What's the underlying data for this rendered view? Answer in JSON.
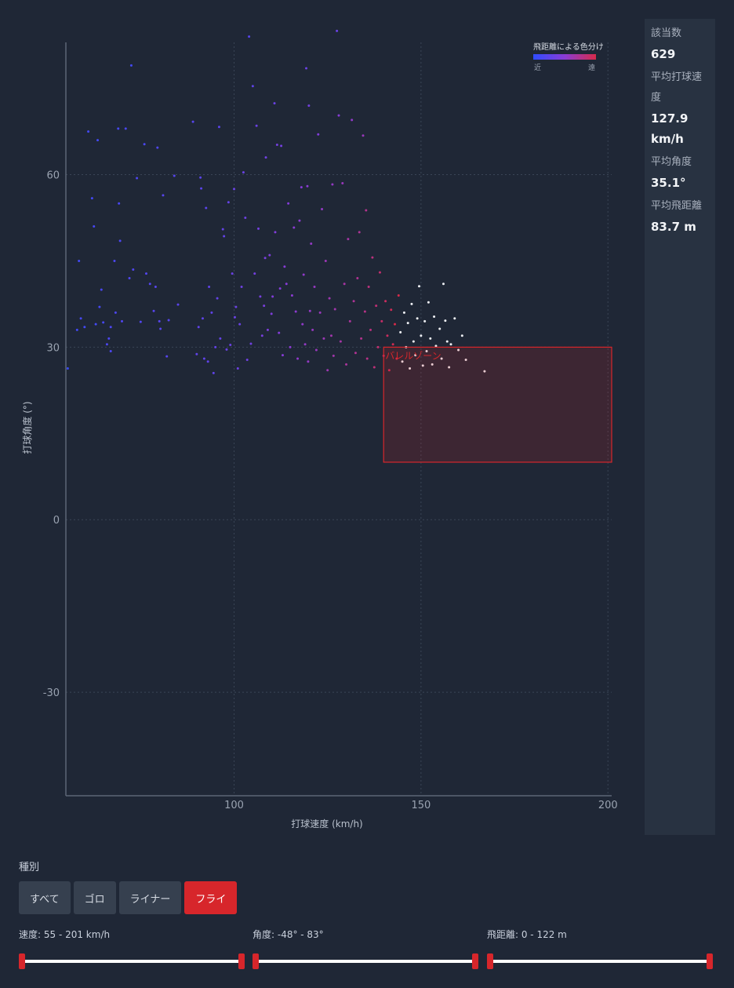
{
  "chart_data": {
    "type": "scatter",
    "xlabel": "打球速度 (km/h)",
    "ylabel": "打球角度 (°)",
    "xlim": [
      55,
      201
    ],
    "ylim": [
      -48,
      83
    ],
    "xticks": [
      100,
      150,
      200
    ],
    "yticks": [
      60,
      30,
      0,
      -30
    ],
    "grid": true,
    "legend": {
      "title": "飛距離による色分け",
      "near": "近",
      "far": "遠",
      "placement": "top-right",
      "colors": [
        "#2f4cff",
        "#8a3cd6",
        "#d72a4a"
      ]
    },
    "highlight_zone": {
      "label": "バレルゾーン",
      "x_range": [
        140,
        201
      ],
      "y_range": [
        10,
        30
      ],
      "color": "#d7262b"
    },
    "points": [
      [
        55.5,
        26.3,
        0.05
      ],
      [
        58,
        33,
        0.1
      ],
      [
        58.5,
        45,
        0.1
      ],
      [
        59,
        35,
        0.12
      ],
      [
        60,
        33.5,
        0.1
      ],
      [
        61,
        67.5,
        0.1
      ],
      [
        62,
        55.9,
        0.1
      ],
      [
        62.5,
        51,
        0.12
      ],
      [
        63,
        34,
        0.1
      ],
      [
        63.5,
        66,
        0.1
      ],
      [
        64,
        37,
        0.12
      ],
      [
        64.5,
        40,
        0.13
      ],
      [
        65,
        34.3,
        0.12
      ],
      [
        66,
        30.5,
        0.15
      ],
      [
        66.5,
        31.5,
        0.15
      ],
      [
        67,
        29.3,
        0.15
      ],
      [
        67,
        33.5,
        0.15
      ],
      [
        68,
        45,
        0.15
      ],
      [
        68.3,
        36,
        0.15
      ],
      [
        69,
        68,
        0.12
      ],
      [
        69.2,
        55,
        0.13
      ],
      [
        69.5,
        48.5,
        0.15
      ],
      [
        70,
        34.5,
        0.17
      ],
      [
        71,
        68,
        0.14
      ],
      [
        72,
        42,
        0.17
      ],
      [
        72.5,
        79,
        0.1
      ],
      [
        73,
        43.5,
        0.17
      ],
      [
        74,
        59.4,
        0.16
      ],
      [
        75,
        34.4,
        0.17
      ],
      [
        76,
        65.3,
        0.14
      ],
      [
        76.5,
        42.8,
        0.18
      ],
      [
        77.5,
        41,
        0.18
      ],
      [
        78.5,
        36.3,
        0.2
      ],
      [
        79,
        40.5,
        0.2
      ],
      [
        79.5,
        64.7,
        0.16
      ],
      [
        80,
        34.5,
        0.2
      ],
      [
        80.3,
        33.2,
        0.2
      ],
      [
        81,
        56.4,
        0.2
      ],
      [
        82,
        28.4,
        0.2
      ],
      [
        82.5,
        34.7,
        0.2
      ],
      [
        84,
        59.8,
        0.2
      ],
      [
        85,
        37.4,
        0.22
      ],
      [
        89,
        69.2,
        0.2
      ],
      [
        90,
        28.8,
        0.25
      ],
      [
        90.5,
        33.5,
        0.25
      ],
      [
        91,
        59.5,
        0.22
      ],
      [
        91.2,
        57.6,
        0.22
      ],
      [
        91.6,
        35,
        0.25
      ],
      [
        92,
        28,
        0.25
      ],
      [
        92.5,
        54.2,
        0.22
      ],
      [
        93,
        27.5,
        0.25
      ],
      [
        93.3,
        40.5,
        0.25
      ],
      [
        94,
        36,
        0.25
      ],
      [
        94.5,
        25.5,
        0.25
      ],
      [
        95,
        30,
        0.27
      ],
      [
        95.5,
        38.5,
        0.27
      ],
      [
        96,
        68.3,
        0.22
      ],
      [
        96.3,
        31.5,
        0.27
      ],
      [
        97,
        50.5,
        0.27
      ],
      [
        97.3,
        49.3,
        0.27
      ],
      [
        98,
        29.6,
        0.3
      ],
      [
        98.5,
        55.2,
        0.27
      ],
      [
        99,
        30.4,
        0.3
      ],
      [
        99.5,
        42.8,
        0.3
      ],
      [
        100,
        57.5,
        0.3
      ],
      [
        100.2,
        35.2,
        0.3
      ],
      [
        100.5,
        37,
        0.3
      ],
      [
        101,
        26.3,
        0.32
      ],
      [
        101.5,
        34,
        0.3
      ],
      [
        102,
        40.5,
        0.32
      ],
      [
        102.5,
        60.4,
        0.3
      ],
      [
        103,
        52.5,
        0.32
      ],
      [
        103.5,
        27.8,
        0.33
      ],
      [
        104,
        84,
        0.2
      ],
      [
        104.5,
        30.6,
        0.33
      ],
      [
        105,
        75.4,
        0.25
      ],
      [
        105.5,
        42.8,
        0.35
      ],
      [
        106,
        68.5,
        0.3
      ],
      [
        106.5,
        50.6,
        0.35
      ],
      [
        107,
        38.8,
        0.37
      ],
      [
        107.5,
        32,
        0.37
      ],
      [
        108,
        37.2,
        0.38
      ],
      [
        108.3,
        45.5,
        0.38
      ],
      [
        108.5,
        63,
        0.33
      ],
      [
        109,
        33,
        0.4
      ],
      [
        109.5,
        46,
        0.4
      ],
      [
        110,
        35.8,
        0.4
      ],
      [
        110.3,
        38.8,
        0.42
      ],
      [
        110.8,
        72.4,
        0.3
      ],
      [
        111,
        50,
        0.42
      ],
      [
        111.5,
        65.2,
        0.35
      ],
      [
        112,
        32.5,
        0.43
      ],
      [
        112.3,
        40.2,
        0.43
      ],
      [
        112.6,
        65,
        0.35
      ],
      [
        113,
        28.6,
        0.45
      ],
      [
        113.5,
        44,
        0.45
      ],
      [
        114,
        41,
        0.45
      ],
      [
        114.5,
        55,
        0.43
      ],
      [
        115,
        30,
        0.47
      ],
      [
        115.5,
        39,
        0.47
      ],
      [
        116,
        50.8,
        0.47
      ],
      [
        116.5,
        36.2,
        0.48
      ],
      [
        117,
        28,
        0.5
      ],
      [
        117.5,
        52,
        0.47
      ],
      [
        118,
        57.8,
        0.45
      ],
      [
        118.3,
        34,
        0.5
      ],
      [
        118.6,
        42.6,
        0.5
      ],
      [
        119,
        30.5,
        0.52
      ],
      [
        119.3,
        78.5,
        0.3
      ],
      [
        119.6,
        58,
        0.47
      ],
      [
        119.8,
        27.5,
        0.52
      ],
      [
        120,
        72,
        0.35
      ],
      [
        120.3,
        36.3,
        0.52
      ],
      [
        120.6,
        48,
        0.52
      ],
      [
        121,
        33,
        0.53
      ],
      [
        121.5,
        40.5,
        0.53
      ],
      [
        122,
        29.5,
        0.55
      ],
      [
        122.5,
        67,
        0.42
      ],
      [
        123,
        36,
        0.55
      ],
      [
        123.5,
        54,
        0.52
      ],
      [
        124,
        31.5,
        0.57
      ],
      [
        124.5,
        45,
        0.57
      ],
      [
        125,
        26,
        0.58
      ],
      [
        125.5,
        38.5,
        0.58
      ],
      [
        126,
        32,
        0.6
      ],
      [
        126.3,
        58.3,
        0.52
      ],
      [
        126.6,
        28.5,
        0.6
      ],
      [
        127,
        36.6,
        0.6
      ],
      [
        127.5,
        85,
        0.3
      ],
      [
        128,
        70.3,
        0.45
      ],
      [
        128.5,
        31,
        0.62
      ],
      [
        129,
        58.5,
        0.55
      ],
      [
        129.5,
        41,
        0.63
      ],
      [
        130,
        27,
        0.65
      ],
      [
        130.5,
        48.8,
        0.62
      ],
      [
        131,
        34.5,
        0.65
      ],
      [
        131.5,
        69.5,
        0.5
      ],
      [
        132,
        38,
        0.67
      ],
      [
        132.5,
        29,
        0.68
      ],
      [
        133,
        42,
        0.68
      ],
      [
        133.5,
        50,
        0.67
      ],
      [
        134,
        31.5,
        0.7
      ],
      [
        134.5,
        66.8,
        0.55
      ],
      [
        135,
        36.2,
        0.72
      ],
      [
        135.3,
        53.8,
        0.7
      ],
      [
        135.6,
        28,
        0.72
      ],
      [
        136,
        40.5,
        0.75
      ],
      [
        136.5,
        33,
        0.75
      ],
      [
        137,
        45.6,
        0.75
      ],
      [
        137.5,
        26.5,
        0.77
      ],
      [
        138,
        37.2,
        0.78
      ],
      [
        138.5,
        30,
        0.8
      ],
      [
        139,
        43,
        0.8
      ],
      [
        139.5,
        34.5,
        0.82
      ],
      [
        140,
        28.5,
        0.82
      ],
      [
        140.5,
        38,
        0.85
      ],
      [
        141,
        32,
        0.85
      ],
      [
        141.5,
        26,
        0.87
      ],
      [
        142,
        36.5,
        0.88
      ],
      [
        142.5,
        30.5,
        0.9
      ],
      [
        143,
        34,
        0.92
      ],
      [
        143.5,
        28,
        0.92
      ],
      [
        144,
        39,
        0.93
      ],
      [
        144.5,
        32.6,
        0.95
      ],
      [
        145,
        27.5,
        0.95
      ],
      [
        145.5,
        36,
        0.96
      ],
      [
        146,
        30,
        0.97
      ],
      [
        146.5,
        34.2,
        0.98
      ],
      [
        147,
        26.3,
        0.97
      ],
      [
        147.5,
        37.5,
        0.99
      ],
      [
        148,
        31,
        0.99
      ],
      [
        148.5,
        28.6,
        0.98
      ],
      [
        149,
        35,
        1
      ],
      [
        149.5,
        40.6,
        1
      ],
      [
        150,
        32,
        1
      ],
      [
        150.5,
        26.8,
        0.98
      ],
      [
        151,
        34.5,
        1
      ],
      [
        151.5,
        29.3,
        0.99
      ],
      [
        152,
        37.8,
        1
      ],
      [
        152.5,
        31.5,
        1
      ],
      [
        153,
        27,
        0.98
      ],
      [
        153.5,
        35.3,
        1
      ],
      [
        154,
        30.2,
        0.99
      ],
      [
        155,
        33.2,
        1
      ],
      [
        155.5,
        28,
        0.97
      ],
      [
        156,
        41,
        1
      ],
      [
        156.5,
        34.6,
        1
      ],
      [
        157,
        31,
        0.99
      ],
      [
        157.5,
        26.5,
        0.97
      ],
      [
        158,
        30.5,
        0.99
      ],
      [
        159,
        35,
        1
      ],
      [
        160,
        29.5,
        0.98
      ],
      [
        161,
        32,
        0.99
      ],
      [
        162,
        27.8,
        0.97
      ],
      [
        167,
        25.8,
        0.98
      ]
    ]
  },
  "sidebar": {
    "count_label": "該当数",
    "count_value": "629",
    "speed_label": "平均打球速度",
    "speed_value": "127.9 km/h",
    "angle_label": "平均角度",
    "angle_value": "35.1°",
    "distance_label": "平均飛距離",
    "distance_value": "83.7 m"
  },
  "filters": {
    "title": "種別",
    "buttons": [
      "すべて",
      "ゴロ",
      "ライナー",
      "フライ"
    ],
    "active_index": 3,
    "ranges": [
      {
        "label": "速度: 55 - 201 km/h",
        "min": 55,
        "max": 201,
        "low": 55,
        "high": 201
      },
      {
        "label": "角度: -48° - 83°",
        "min": -48,
        "max": 83,
        "low": -48,
        "high": 83
      },
      {
        "label": "飛距離: 0 - 122 m",
        "min": 0,
        "max": 122,
        "low": 0,
        "high": 122
      }
    ]
  }
}
